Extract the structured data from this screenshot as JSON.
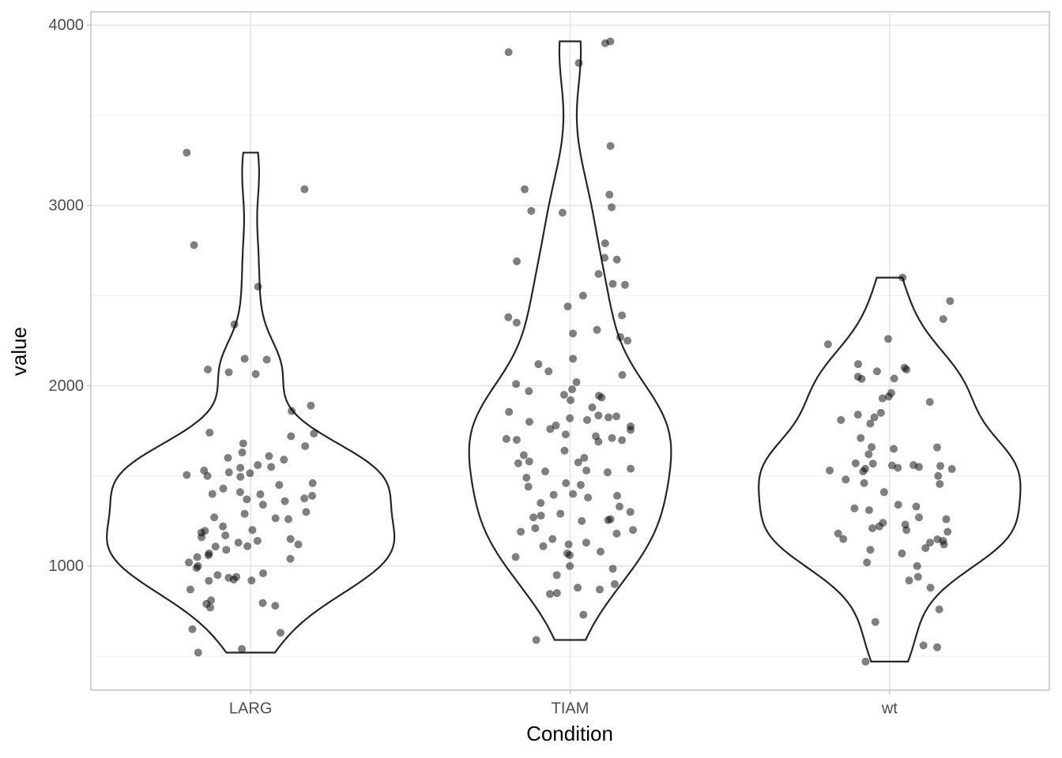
{
  "chart_data": {
    "type": "violin",
    "x_label": "Condition",
    "y_label": "value",
    "categories": [
      "LARG",
      "TIAM",
      "wt"
    ],
    "values": [
      [
        3293,
        3090,
        2780,
        2550,
        2340,
        2150,
        2145,
        2090,
        2075,
        2065,
        1890,
        1860,
        1740,
        1735,
        1720,
        1680,
        1665,
        1630,
        1610,
        1600,
        1590,
        1560,
        1550,
        1545,
        1530,
        1520,
        1515,
        1505,
        1500,
        1495,
        1460,
        1450,
        1430,
        1410,
        1400,
        1398,
        1390,
        1375,
        1370,
        1360,
        1340,
        1300,
        1290,
        1270,
        1265,
        1260,
        1220,
        1200,
        1195,
        1185,
        1170,
        1160,
        1150,
        1140,
        1130,
        1120,
        1110,
        1108,
        1090,
        1070,
        1060,
        1050,
        1040,
        1020,
        1000,
        990,
        960,
        950,
        940,
        935,
        925,
        920,
        918,
        870,
        810,
        795,
        790,
        780,
        770,
        650,
        630,
        540,
        520
      ],
      [
        3910,
        3900,
        3850,
        3790,
        3330,
        3090,
        3060,
        2990,
        2970,
        2960,
        2790,
        2710,
        2700,
        2690,
        2620,
        2565,
        2560,
        2500,
        2440,
        2390,
        2380,
        2350,
        2310,
        2290,
        2270,
        2250,
        2150,
        2120,
        2080,
        2060,
        2020,
        2010,
        1980,
        1970,
        1950,
        1945,
        1935,
        1920,
        1880,
        1855,
        1835,
        1830,
        1825,
        1820,
        1810,
        1800,
        1780,
        1775,
        1760,
        1755,
        1730,
        1720,
        1710,
        1705,
        1700,
        1698,
        1690,
        1640,
        1615,
        1600,
        1580,
        1575,
        1570,
        1540,
        1530,
        1525,
        1520,
        1490,
        1460,
        1450,
        1440,
        1400,
        1395,
        1390,
        1380,
        1350,
        1330,
        1300,
        1290,
        1280,
        1270,
        1260,
        1255,
        1250,
        1210,
        1200,
        1190,
        1180,
        1150,
        1130,
        1120,
        1110,
        1080,
        1070,
        1060,
        1050,
        1000,
        985,
        950,
        900,
        880,
        870,
        850,
        845,
        730,
        590
      ],
      [
        2600,
        2470,
        2370,
        2260,
        2230,
        2120,
        2100,
        2090,
        2080,
        2050,
        2040,
        2038,
        1960,
        1940,
        1930,
        1910,
        1850,
        1840,
        1825,
        1810,
        1790,
        1710,
        1660,
        1658,
        1650,
        1620,
        1570,
        1568,
        1560,
        1558,
        1555,
        1550,
        1545,
        1540,
        1538,
        1530,
        1525,
        1500,
        1480,
        1460,
        1455,
        1410,
        1340,
        1330,
        1320,
        1310,
        1270,
        1260,
        1240,
        1230,
        1220,
        1210,
        1200,
        1190,
        1180,
        1150,
        1148,
        1140,
        1130,
        1120,
        1100,
        1090,
        1070,
        1020,
        1000,
        940,
        920,
        880,
        760,
        690,
        560,
        550,
        470
      ]
    ],
    "ylim": [
      312,
      4074
    ],
    "yticks": [
      1000,
      2000,
      3000,
      4000
    ],
    "yminorticks": [
      500,
      1500,
      2500,
      3500
    ],
    "grid": true,
    "line_color": "#262626",
    "point_color": "#000000",
    "point_opacity": 0.5
  }
}
